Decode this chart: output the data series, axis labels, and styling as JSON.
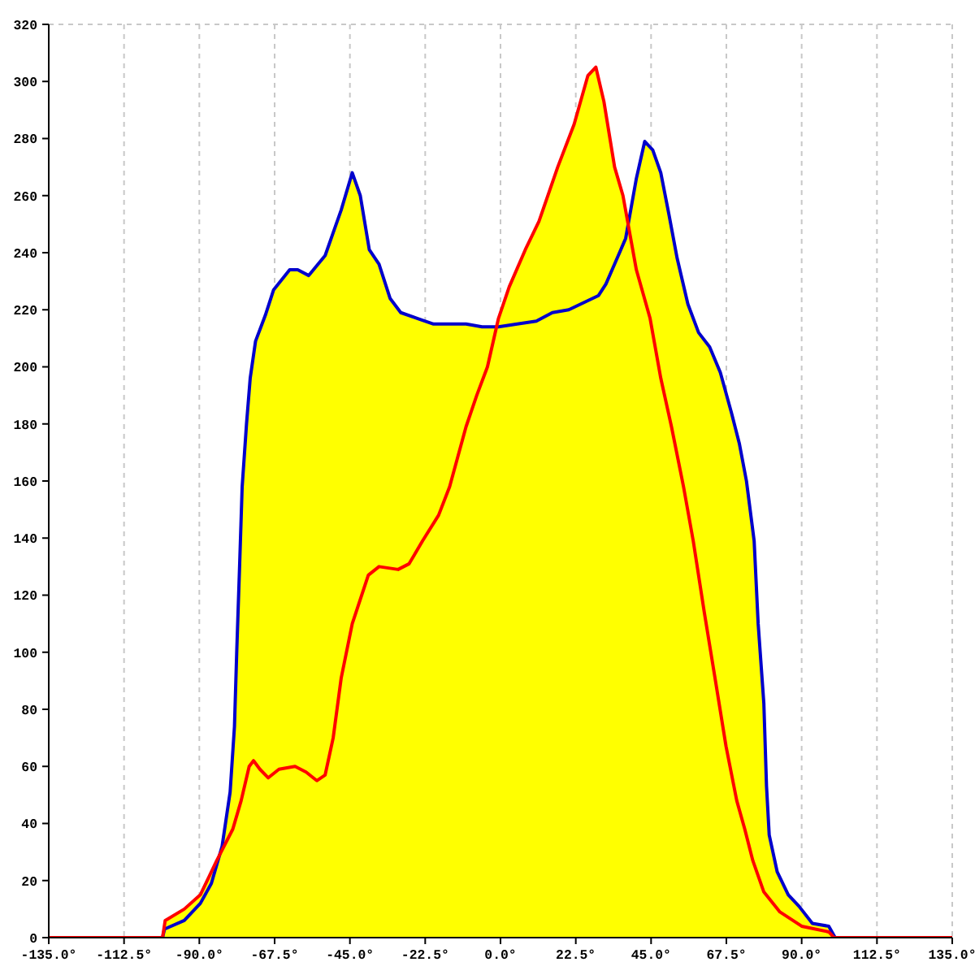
{
  "chart_data": {
    "type": "line",
    "xlim": [
      -135,
      135
    ],
    "xticks": [
      {
        "value": -135,
        "label": "-135.0°"
      },
      {
        "value": -112.5,
        "label": "-112.5°"
      },
      {
        "value": -90,
        "label": "-90.0°"
      },
      {
        "value": -67.5,
        "label": "-67.5°"
      },
      {
        "value": -45,
        "label": "-45.0°"
      },
      {
        "value": -22.5,
        "label": "-22.5°"
      },
      {
        "value": 0,
        "label": "0.0°"
      },
      {
        "value": 22.5,
        "label": "22.5°"
      },
      {
        "value": 45,
        "label": "45.0°"
      },
      {
        "value": 67.5,
        "label": "67.5°"
      },
      {
        "value": 90,
        "label": "90.0°"
      },
      {
        "value": 112.5,
        "label": "112.5°"
      },
      {
        "value": 135,
        "label": "135.0°"
      }
    ],
    "ylim": [
      0,
      320
    ],
    "yticks": [
      0,
      20,
      40,
      60,
      80,
      100,
      120,
      140,
      160,
      180,
      200,
      220,
      240,
      260,
      280,
      300,
      320
    ],
    "grid": true,
    "series": [
      {
        "type": "area",
        "color": "#ffff00",
        "x": [
          -101.0,
          -100.2,
          -94.5,
          -89.7,
          -84.8,
          -83.2,
          -80.8,
          -79.5,
          -78.8,
          -78.0,
          -77.2,
          -75.9,
          -74.8,
          -73.2,
          -70.3,
          -67.8,
          -63.0,
          -60.6,
          -57.3,
          -52.4,
          -50.0,
          -47.6,
          -44.3,
          -41.9,
          -39.2,
          -36.3,
          -33.0,
          -29.8,
          -24.9,
          -20.0,
          -13.6,
          -10.3,
          -5.5,
          -1.2,
          -0.6,
          2.6,
          7.4,
          11.5,
          17.1,
          22.0,
          26.1,
          28.5,
          30.9,
          34.1,
          36.6,
          38.0,
          40.6,
          43.1,
          45.5,
          47.9,
          50.4,
          52.8,
          56.0,
          59.2,
          62.5,
          65.7,
          69.0,
          71.4,
          73.5,
          75.8,
          77.0,
          78.7,
          79.5,
          80.3,
          82.7,
          86.0,
          89.2,
          93.2,
          98.1,
          100.0
        ],
        "values": [
          0,
          6,
          10,
          15,
          27,
          32,
          51,
          74,
          101,
          129,
          158,
          180,
          196,
          209,
          218,
          227,
          234,
          234,
          232,
          239,
          247,
          255,
          268,
          260,
          241,
          236,
          224,
          219,
          217,
          215,
          215,
          215,
          214,
          214,
          217,
          228,
          241,
          251,
          270,
          285,
          302,
          305,
          293,
          270,
          260,
          251,
          266,
          279,
          276,
          268,
          253,
          238,
          222,
          212,
          207,
          198,
          184,
          173,
          160,
          139,
          110,
          82,
          53,
          36,
          23,
          15,
          11,
          5,
          4,
          0
        ]
      },
      {
        "type": "line",
        "color": "#0000cc",
        "x": [
          -101.0,
          -100.4,
          -94.5,
          -89.7,
          -86.4,
          -83.2,
          -80.8,
          -79.5,
          -78.8,
          -78.0,
          -77.2,
          -75.9,
          -74.8,
          -73.2,
          -70.3,
          -67.8,
          -63.0,
          -60.6,
          -57.3,
          -52.4,
          -50.0,
          -47.6,
          -44.3,
          -41.9,
          -39.2,
          -36.3,
          -33.0,
          -29.8,
          -24.9,
          -20.0,
          -13.6,
          -10.3,
          -5.5,
          -0.6,
          5.0,
          10.7,
          15.5,
          20.4,
          29.3,
          31.5,
          34.1,
          37.4,
          40.6,
          43.1,
          45.5,
          47.9,
          50.4,
          52.8,
          56.0,
          59.2,
          62.5,
          65.7,
          69.0,
          71.4,
          73.5,
          75.8,
          77.0,
          78.7,
          79.5,
          80.3,
          82.7,
          86.0,
          89.2,
          93.2,
          98.1,
          100.0
        ],
        "values": [
          0,
          3,
          6,
          12,
          19,
          32,
          51,
          74,
          101,
          129,
          158,
          180,
          196,
          209,
          218,
          227,
          234,
          234,
          232,
          239,
          247,
          255,
          268,
          260,
          241,
          236,
          224,
          219,
          217,
          215,
          215,
          215,
          214,
          214,
          215,
          216,
          219,
          220,
          225,
          229,
          236,
          245,
          266,
          279,
          276,
          268,
          253,
          238,
          222,
          212,
          207,
          198,
          184,
          173,
          160,
          139,
          110,
          82,
          53,
          36,
          23,
          15,
          11,
          5,
          4,
          0
        ]
      },
      {
        "type": "line",
        "color": "#ff0000",
        "x": [
          -135,
          -101.0,
          -100.2,
          -94.5,
          -89.7,
          -84.8,
          -80.0,
          -77.5,
          -75.1,
          -73.8,
          -71.9,
          -69.4,
          -66.2,
          -61.4,
          -58.1,
          -54.9,
          -52.4,
          -50.0,
          -47.6,
          -44.3,
          -39.5,
          -36.3,
          -30.6,
          -27.3,
          -23.3,
          -18.5,
          -15.2,
          -10.3,
          -7.1,
          -3.9,
          -0.6,
          2.6,
          7.4,
          11.5,
          17.1,
          22.0,
          26.1,
          28.5,
          30.9,
          34.1,
          36.6,
          40.6,
          44.7,
          47.9,
          51.1,
          54.7,
          57.6,
          60.9,
          64.1,
          67.4,
          70.6,
          73.0,
          75.4,
          78.7,
          83.5,
          90.0,
          98.1,
          99.7,
          135
        ],
        "values": [
          0,
          0,
          6,
          10,
          15,
          27,
          38,
          48,
          60,
          62,
          59,
          56,
          59,
          60,
          58,
          55,
          57,
          70,
          91,
          110,
          127,
          130,
          129,
          131,
          139,
          148,
          158,
          179,
          190,
          200,
          217,
          228,
          241,
          251,
          270,
          285,
          302,
          305,
          293,
          270,
          260,
          234,
          217,
          196,
          179,
          158,
          139,
          114,
          91,
          67,
          48,
          38,
          27,
          16,
          9,
          4,
          2,
          0,
          0
        ]
      }
    ]
  }
}
